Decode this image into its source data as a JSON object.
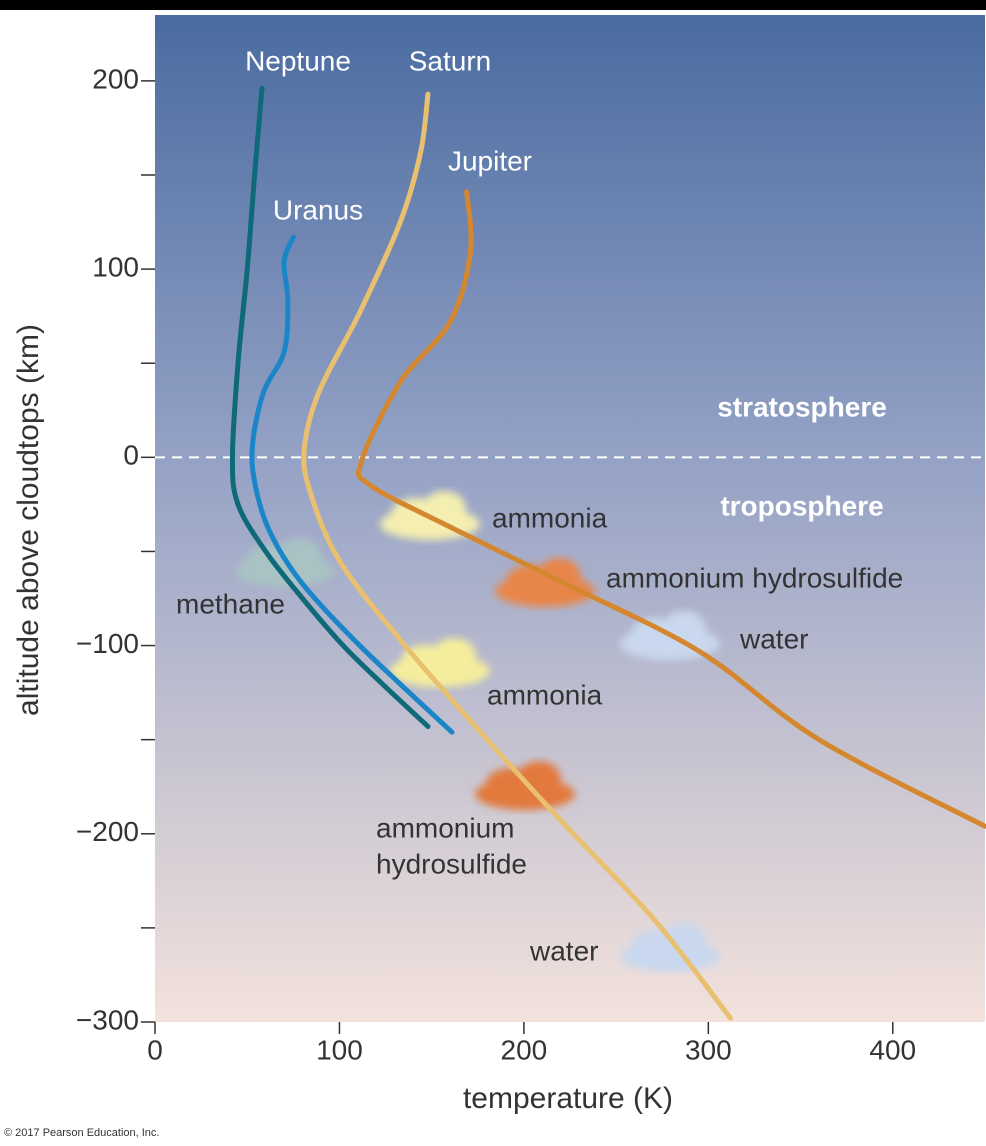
{
  "chart_data": {
    "type": "line",
    "xlabel": "temperature (K)",
    "ylabel": "altitude above cloudtops (km)",
    "xlim": [
      0,
      450
    ],
    "ylim": [
      -300,
      235
    ],
    "xticks": [
      0,
      100,
      200,
      300,
      400
    ],
    "yticks": [
      {
        "value": -300,
        "label": "−300"
      },
      {
        "value": -200,
        "label": "−200"
      },
      {
        "value": -100,
        "label": "−100"
      },
      0,
      100,
      200
    ],
    "yminorticks": [
      -250,
      -150,
      -50,
      50,
      150
    ],
    "reference_line": 0,
    "series": [
      {
        "name": "Neptune",
        "color": "#0e6a78",
        "x": [
          58,
          54,
          50,
          45,
          42,
          45,
          60,
          80,
          102,
          125,
          148
        ],
        "values": [
          196,
          150,
          100,
          50,
          0,
          -25,
          -50,
          -75,
          -100,
          -122,
          -143
        ]
      },
      {
        "name": "Uranus",
        "color": "#1a86c8",
        "x": [
          75,
          70,
          72,
          70,
          59,
          53,
          54,
          62,
          79,
          111,
          161
        ],
        "values": [
          117,
          104,
          83,
          56,
          35,
          8,
          -13,
          -39,
          -66,
          -100,
          -146
        ]
      },
      {
        "name": "Saturn",
        "color": "#e8c070",
        "x": [
          148,
          144,
          133,
          111,
          89,
          81,
          84,
          100,
          133,
          171,
          220,
          271,
          312
        ],
        "values": [
          193,
          162,
          125,
          77,
          35,
          5,
          -18,
          -55,
          -97,
          -140,
          -193,
          -246,
          -298
        ]
      },
      {
        "name": "Jupiter",
        "color": "#d4872e",
        "x": [
          169,
          171,
          160,
          133,
          112,
          117,
          160,
          220,
          295,
          360,
          450
        ],
        "values": [
          141,
          109,
          72,
          40,
          -2,
          -15,
          -37,
          -66,
          -103,
          -150,
          -196
        ]
      }
    ],
    "annotations": [
      "stratosphere",
      "troposphere",
      "ammonia",
      "ammonium hydrosulfide",
      "water",
      "methane",
      "ammonia",
      "ammonium",
      "hydrosulfide",
      "water"
    ],
    "credit": "© 2017 Pearson Education, Inc."
  }
}
